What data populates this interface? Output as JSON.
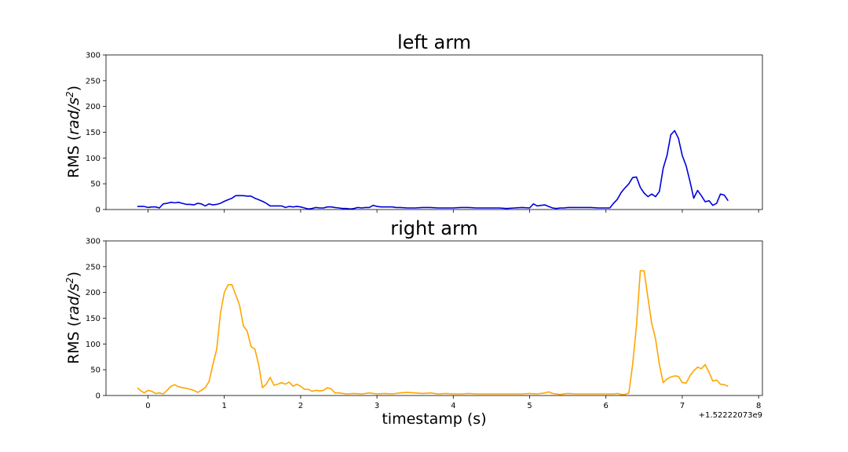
{
  "chart_data": [
    {
      "type": "line",
      "title": "left arm",
      "ylabel_main": "RMS (",
      "ylabel_unit": "rad/s",
      "ylabel_exp": "2",
      "ylabel_close": ")",
      "ylim": [
        0,
        300
      ],
      "yticks": [
        "0",
        "50",
        "100",
        "150",
        "200",
        "250",
        "300"
      ],
      "xlim": [
        -0.55,
        8.05
      ],
      "color": "#0000dd",
      "x": [
        -0.14,
        -0.05,
        0.0,
        0.05,
        0.1,
        0.15,
        0.2,
        0.25,
        0.3,
        0.35,
        0.4,
        0.45,
        0.5,
        0.55,
        0.6,
        0.65,
        0.7,
        0.75,
        0.8,
        0.85,
        0.9,
        0.95,
        1.0,
        1.05,
        1.1,
        1.15,
        1.2,
        1.25,
        1.3,
        1.35,
        1.4,
        1.45,
        1.5,
        1.55,
        1.6,
        1.65,
        1.7,
        1.75,
        1.8,
        1.85,
        1.9,
        1.95,
        2.0,
        2.05,
        2.1,
        2.15,
        2.2,
        2.25,
        2.3,
        2.35,
        2.4,
        2.45,
        2.5,
        2.55,
        2.6,
        2.65,
        2.7,
        2.75,
        2.8,
        2.85,
        2.9,
        2.95,
        3.0,
        3.05,
        3.1,
        3.15,
        3.2,
        3.25,
        3.3,
        3.4,
        3.5,
        3.6,
        3.7,
        3.8,
        3.9,
        4.0,
        4.1,
        4.2,
        4.3,
        4.4,
        4.5,
        4.6,
        4.7,
        4.8,
        4.9,
        5.0,
        5.05,
        5.1,
        5.15,
        5.2,
        5.25,
        5.3,
        5.35,
        5.4,
        5.45,
        5.5,
        5.6,
        5.7,
        5.8,
        5.9,
        6.0,
        6.05,
        6.1,
        6.15,
        6.2,
        6.25,
        6.3,
        6.35,
        6.4,
        6.45,
        6.5,
        6.55,
        6.6,
        6.65,
        6.7,
        6.75,
        6.8,
        6.85,
        6.9,
        6.95,
        7.0,
        7.05,
        7.1,
        7.15,
        7.2,
        7.25,
        7.3,
        7.35,
        7.4,
        7.45,
        7.5,
        7.55,
        7.6
      ],
      "y": [
        6,
        6,
        4,
        5,
        5,
        3,
        11,
        12,
        14,
        13,
        14,
        12,
        10,
        10,
        9,
        12,
        11,
        7,
        11,
        9,
        10,
        12,
        16,
        19,
        22,
        27,
        27,
        27,
        26,
        26,
        22,
        19,
        16,
        12,
        7,
        7,
        7,
        7,
        4,
        6,
        5,
        6,
        5,
        3,
        1,
        2,
        4,
        3,
        3,
        5,
        5,
        4,
        3,
        2,
        2,
        1,
        2,
        4,
        3,
        4,
        4,
        8,
        6,
        5,
        5,
        5,
        5,
        4,
        4,
        3,
        3,
        4,
        4,
        3,
        3,
        3,
        4,
        4,
        3,
        3,
        3,
        3,
        2,
        3,
        4,
        3,
        11,
        7,
        8,
        9,
        6,
        3,
        2,
        3,
        3,
        4,
        4,
        4,
        4,
        3,
        3,
        3,
        12,
        20,
        33,
        42,
        50,
        62,
        63,
        43,
        32,
        25,
        30,
        25,
        35,
        80,
        105,
        145,
        153,
        138,
        105,
        85,
        55,
        22,
        37,
        27,
        15,
        17,
        8,
        12,
        30,
        28,
        17
      ]
    },
    {
      "type": "line",
      "title": "right arm",
      "ylabel_main": "RMS (",
      "ylabel_unit": "rad/s",
      "ylabel_exp": "2",
      "ylabel_close": ")",
      "ylim": [
        0,
        300
      ],
      "yticks": [
        "0",
        "50",
        "100",
        "150",
        "200",
        "250",
        "300"
      ],
      "xlim": [
        -0.55,
        8.05
      ],
      "xticks": [
        "0",
        "1",
        "2",
        "3",
        "4",
        "5",
        "6",
        "7",
        "8"
      ],
      "xlabel": "timestamp (s)",
      "offset_text": "+1.52222073e9",
      "color": "#ffa500",
      "x": [
        -0.14,
        -0.1,
        -0.05,
        0.0,
        0.05,
        0.1,
        0.15,
        0.2,
        0.25,
        0.3,
        0.35,
        0.4,
        0.45,
        0.5,
        0.55,
        0.6,
        0.65,
        0.7,
        0.75,
        0.8,
        0.85,
        0.9,
        0.95,
        1.0,
        1.05,
        1.1,
        1.15,
        1.2,
        1.25,
        1.3,
        1.35,
        1.4,
        1.45,
        1.5,
        1.55,
        1.6,
        1.65,
        1.7,
        1.75,
        1.8,
        1.85,
        1.9,
        1.95,
        2.0,
        2.05,
        2.1,
        2.15,
        2.2,
        2.25,
        2.3,
        2.35,
        2.4,
        2.45,
        2.5,
        2.6,
        2.7,
        2.8,
        2.9,
        3.0,
        3.1,
        3.2,
        3.3,
        3.4,
        3.5,
        3.6,
        3.7,
        3.8,
        3.9,
        4.0,
        4.1,
        4.2,
        4.3,
        4.4,
        4.5,
        4.6,
        4.7,
        4.8,
        4.9,
        5.0,
        5.1,
        5.2,
        5.25,
        5.3,
        5.35,
        5.4,
        5.5,
        5.6,
        5.7,
        5.8,
        5.9,
        6.0,
        6.1,
        6.15,
        6.2,
        6.25,
        6.3,
        6.35,
        6.4,
        6.45,
        6.5,
        6.55,
        6.6,
        6.65,
        6.7,
        6.75,
        6.8,
        6.85,
        6.9,
        6.95,
        7.0,
        7.05,
        7.1,
        7.15,
        7.2,
        7.25,
        7.3,
        7.35,
        7.4,
        7.45,
        7.5,
        7.55,
        7.6
      ],
      "y": [
        15,
        10,
        5,
        10,
        8,
        4,
        5,
        3,
        10,
        18,
        21,
        17,
        15,
        14,
        12,
        10,
        6,
        10,
        15,
        27,
        60,
        90,
        160,
        200,
        215,
        215,
        195,
        175,
        135,
        125,
        95,
        90,
        60,
        15,
        22,
        35,
        20,
        22,
        25,
        22,
        26,
        18,
        22,
        18,
        12,
        12,
        8,
        10,
        9,
        10,
        15,
        13,
        5,
        5,
        3,
        4,
        3,
        5,
        3,
        4,
        3,
        5,
        6,
        5,
        4,
        5,
        3,
        4,
        3,
        3,
        4,
        3,
        3,
        3,
        3,
        3,
        3,
        3,
        4,
        3,
        5,
        7,
        4,
        3,
        2,
        4,
        3,
        3,
        3,
        3,
        3,
        3,
        4,
        2,
        2,
        5,
        60,
        135,
        242,
        242,
        190,
        140,
        110,
        60,
        25,
        32,
        36,
        38,
        37,
        25,
        24,
        38,
        48,
        55,
        52,
        60,
        45,
        28,
        30,
        22,
        21,
        18
      ]
    }
  ]
}
